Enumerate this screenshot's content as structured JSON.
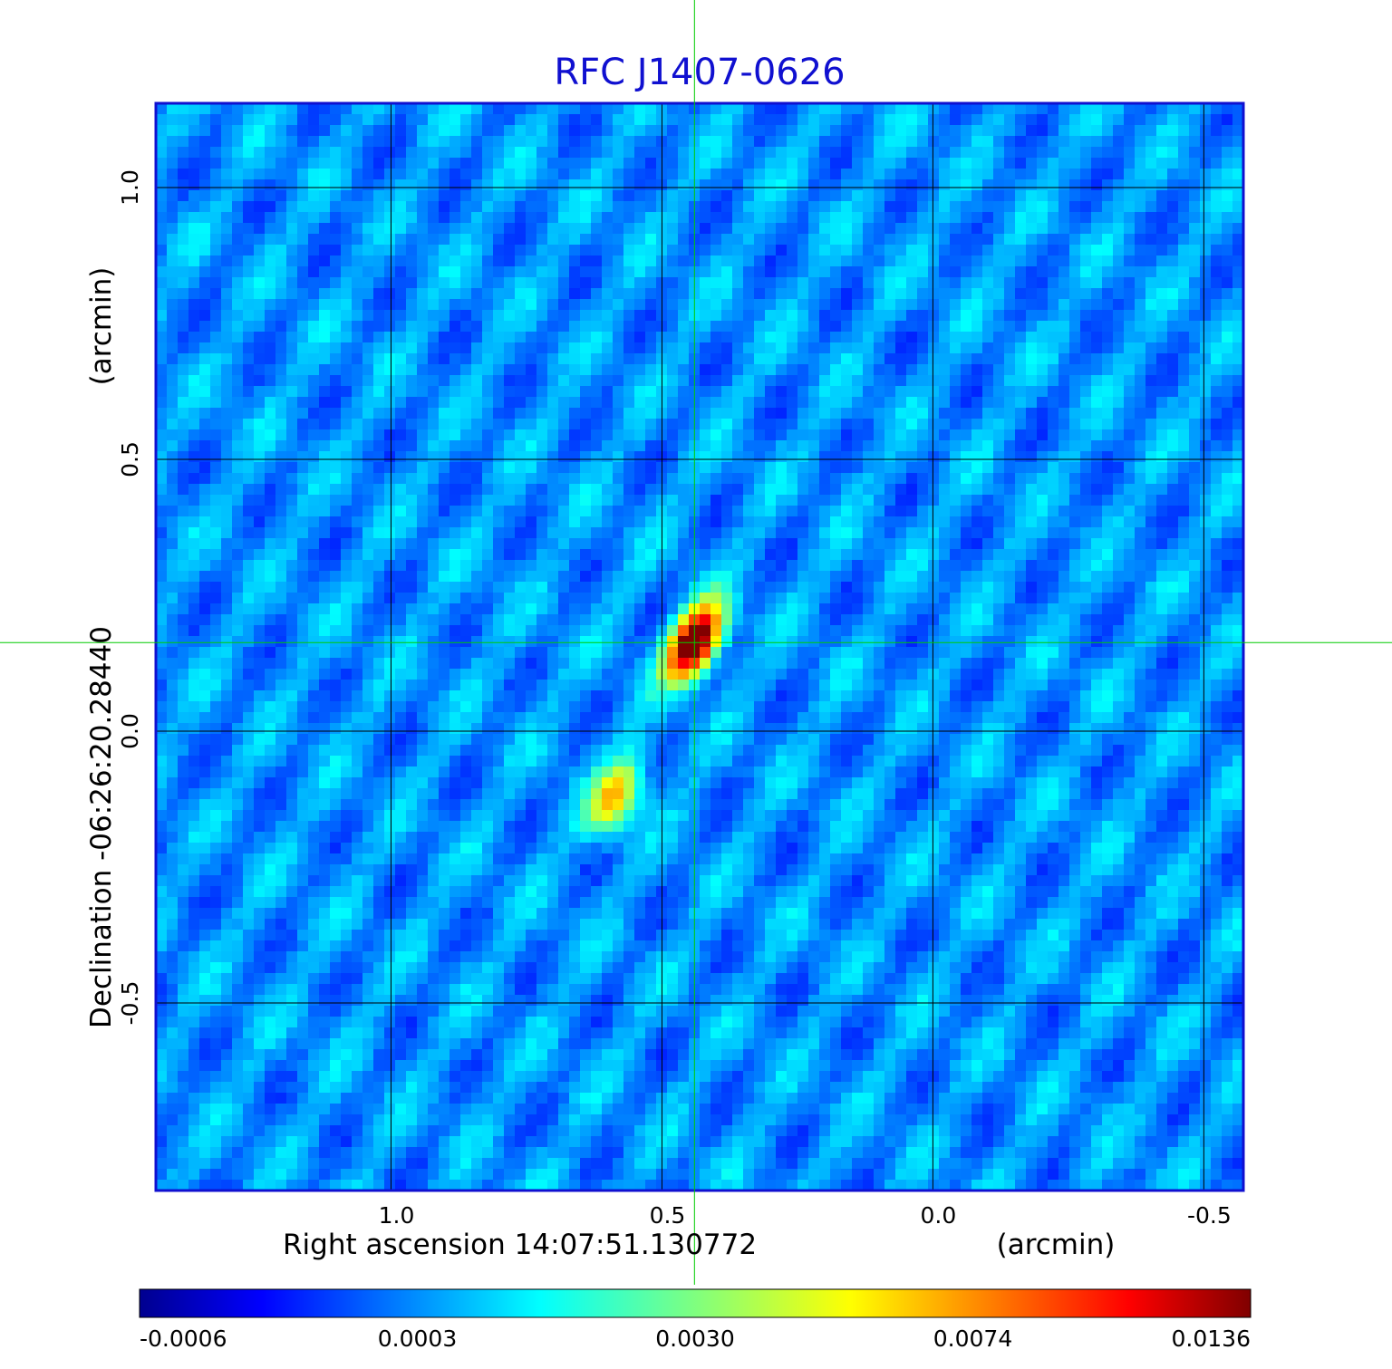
{
  "title": "RFC J1407-0626",
  "chart_data": {
    "type": "heatmap",
    "title": "RFC J1407-0626",
    "xlabel": "Right ascension  14:07:51.130772",
    "xunit": "(arcmin)",
    "ylabel": "Declination  -06:26:20.28440",
    "yunit": "(arcmin)",
    "xlim": [
      1.434,
      -0.573
    ],
    "ylim": [
      -0.845,
      1.155
    ],
    "x_ticks": [
      1.0,
      0.5,
      0.0,
      -0.5
    ],
    "x_tick_labels": [
      "1.0",
      "0.5",
      "0.0",
      "-0.5"
    ],
    "y_ticks": [
      1.0,
      0.5,
      0.0,
      -0.5
    ],
    "y_tick_labels": [
      "1.0",
      "0.5",
      "0.0",
      "-0.5"
    ],
    "grid": true,
    "crosshair": {
      "x": 0.44,
      "y": 0.163
    },
    "sources": [
      {
        "x": 0.44,
        "y": 0.163,
        "peak": 0.0136
      },
      {
        "x": 0.585,
        "y": -0.12,
        "peak": 0.005
      }
    ],
    "colorbar": {
      "labels": [
        "-0.0006",
        "0.0003",
        "0.0030",
        "0.0074",
        "0.0136"
      ],
      "colormap": "jet"
    },
    "colors": {
      "title": "#1010d0",
      "frame": "#1010d0",
      "grid": "#000000",
      "crosshair": "#00cc00",
      "background_cmap": "#1a73ff"
    }
  }
}
